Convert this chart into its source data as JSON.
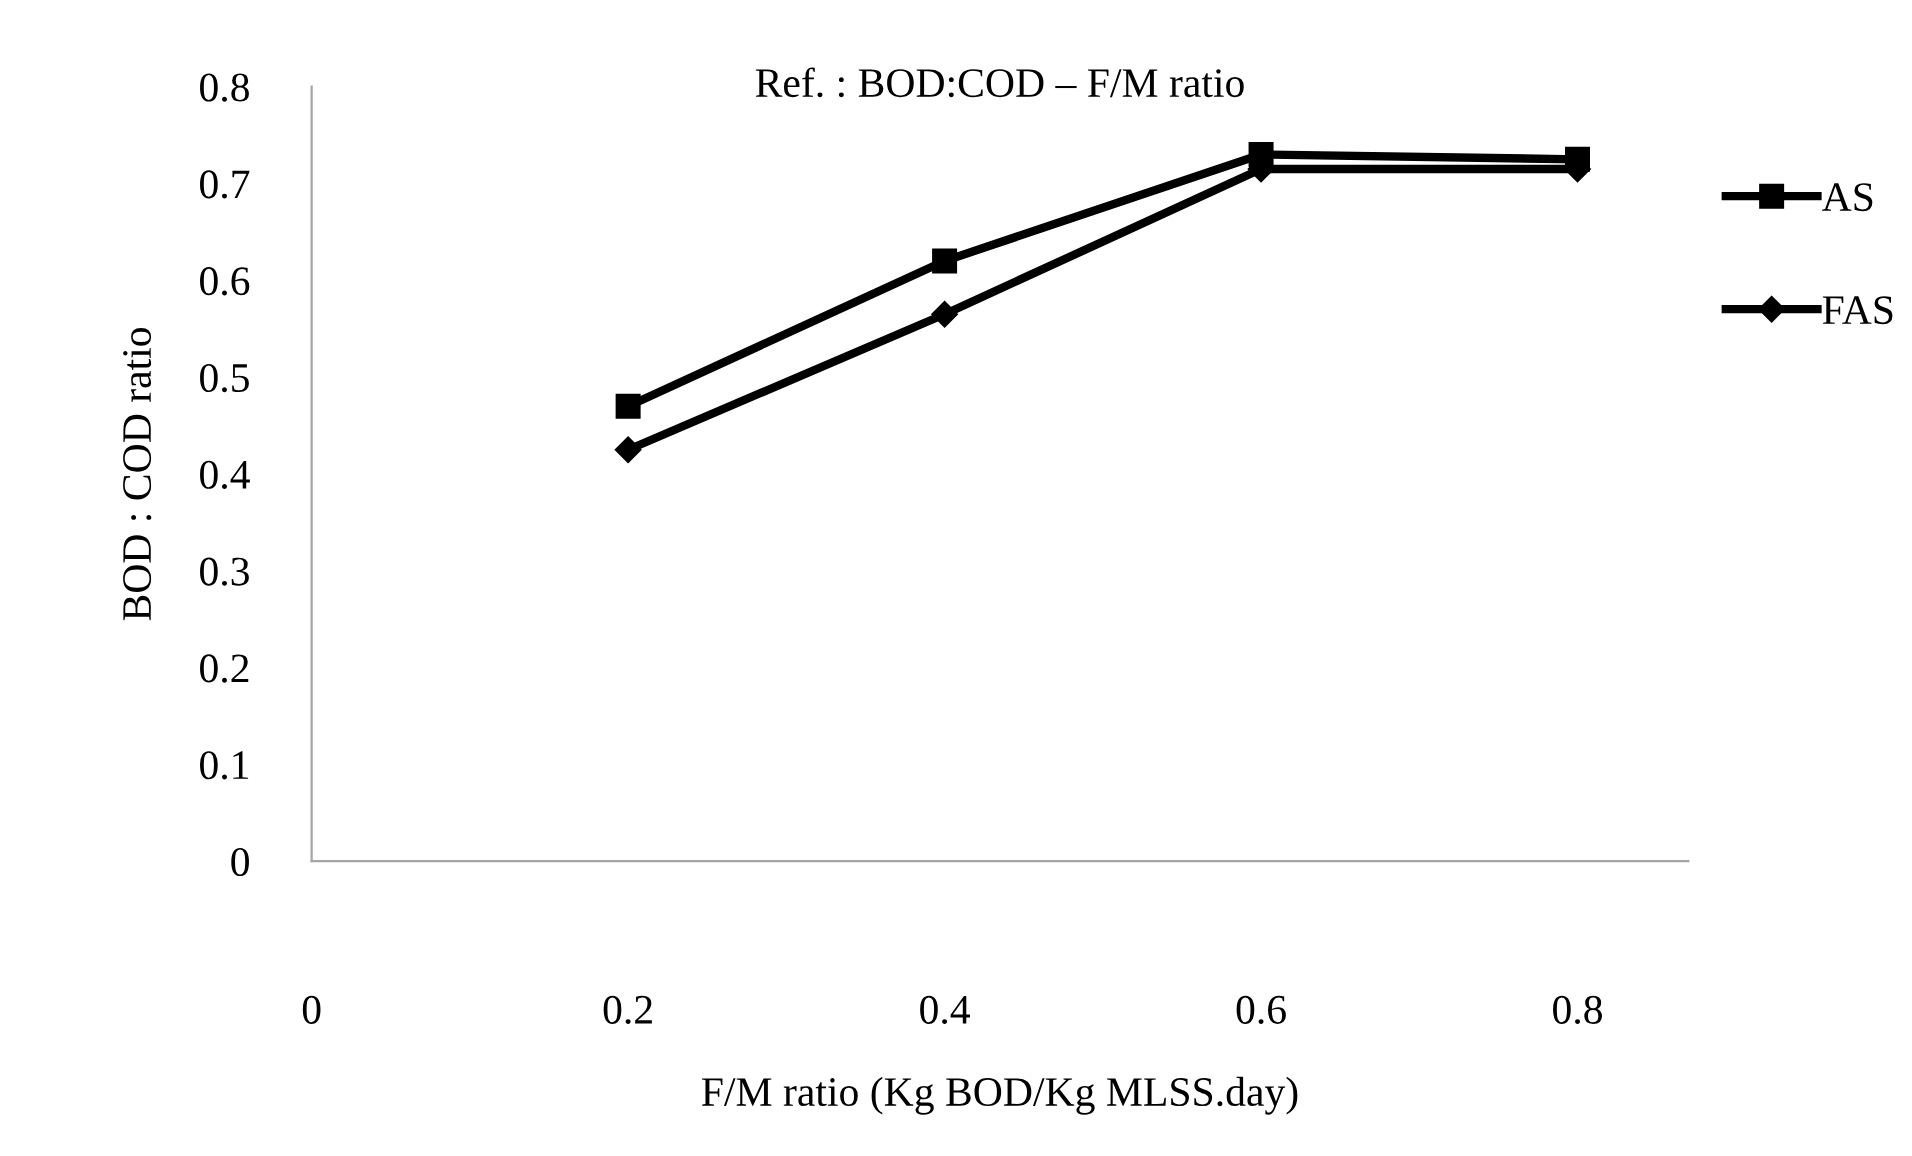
{
  "chart_data": {
    "type": "line",
    "title": "Ref. : BOD:COD – F/M ratio",
    "xlabel": "F/M ratio (Kg BOD/Kg MLSS.day)",
    "ylabel": "BOD : COD ratio",
    "x": [
      0.2,
      0.4,
      0.6,
      0.8
    ],
    "series": [
      {
        "name": "AS",
        "color": "#000000",
        "marker": "square",
        "values": [
          0.47,
          0.62,
          0.73,
          0.725
        ]
      },
      {
        "name": "FAS",
        "color": "#000000",
        "marker": "diamond",
        "values": [
          0.425,
          0.565,
          0.715,
          0.715
        ]
      }
    ],
    "xlim": [
      0,
      0.87
    ],
    "xticks": [
      0,
      0.2,
      0.4,
      0.6,
      0.8
    ],
    "ylim": [
      0,
      0.8
    ],
    "yticks": [
      0,
      0.1,
      0.2,
      0.3,
      0.4,
      0.5,
      0.6,
      0.7,
      0.8
    ],
    "grid": false,
    "legend": "right",
    "line_style": "solid"
  }
}
